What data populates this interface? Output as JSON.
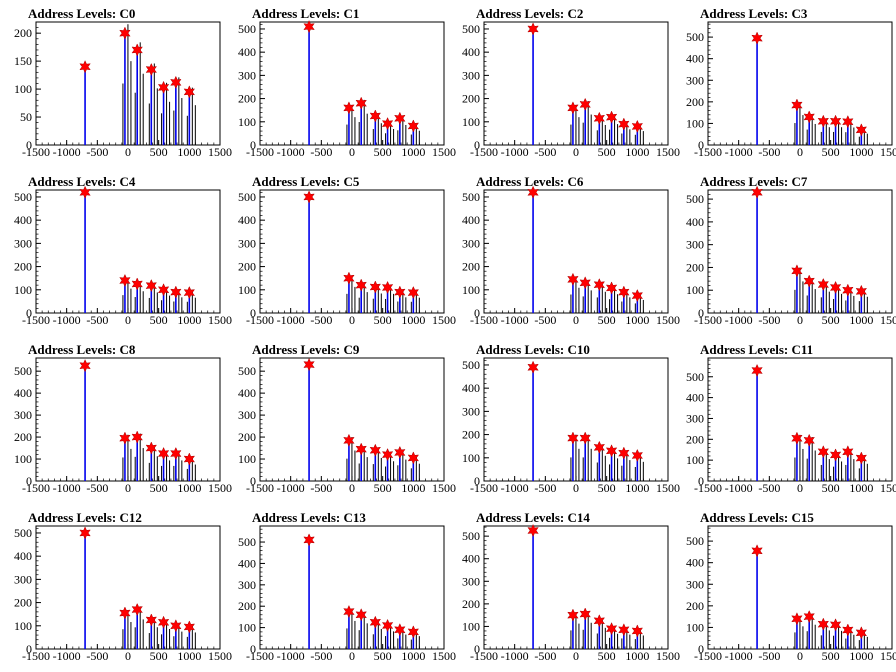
{
  "chart_data": [
    {
      "type": "bar",
      "title": "Address Levels: C0",
      "xlim": [
        -1500,
        1500
      ],
      "ylim": [
        0,
        220
      ],
      "yticks": [
        0,
        50,
        100,
        150,
        200
      ],
      "xticks": [
        -1500,
        -1000,
        -500,
        0,
        500,
        1000,
        1500
      ],
      "peaks": [
        {
          "x": -700,
          "y": 140
        },
        {
          "x": -50,
          "y": 200
        },
        {
          "x": 150,
          "y": 170
        },
        {
          "x": 380,
          "y": 135
        },
        {
          "x": 580,
          "y": 103
        },
        {
          "x": 780,
          "y": 112
        },
        {
          "x": 1000,
          "y": 95
        }
      ]
    },
    {
      "type": "bar",
      "title": "Address Levels: C1",
      "xlim": [
        -1500,
        1500
      ],
      "ylim": [
        0,
        530
      ],
      "yticks": [
        0,
        100,
        200,
        300,
        400,
        500
      ],
      "xticks": [
        -1500,
        -1000,
        -500,
        0,
        500,
        1000,
        1500
      ],
      "peaks": [
        {
          "x": -700,
          "y": 510
        },
        {
          "x": -50,
          "y": 160
        },
        {
          "x": 150,
          "y": 180
        },
        {
          "x": 380,
          "y": 125
        },
        {
          "x": 580,
          "y": 92
        },
        {
          "x": 780,
          "y": 115
        },
        {
          "x": 1000,
          "y": 82
        }
      ]
    },
    {
      "type": "bar",
      "title": "Address Levels: C2",
      "xlim": [
        -1500,
        1500
      ],
      "ylim": [
        0,
        530
      ],
      "yticks": [
        0,
        100,
        200,
        300,
        400,
        500
      ],
      "xticks": [
        -1500,
        -1000,
        -500,
        0,
        500,
        1000,
        1500
      ],
      "peaks": [
        {
          "x": -700,
          "y": 500
        },
        {
          "x": -50,
          "y": 160
        },
        {
          "x": 150,
          "y": 175
        },
        {
          "x": 380,
          "y": 115
        },
        {
          "x": 580,
          "y": 120
        },
        {
          "x": 780,
          "y": 90
        },
        {
          "x": 1000,
          "y": 80
        }
      ]
    },
    {
      "type": "bar",
      "title": "Address Levels: C3",
      "xlim": [
        -1500,
        1500
      ],
      "ylim": [
        0,
        570
      ],
      "yticks": [
        0,
        100,
        200,
        300,
        400,
        500
      ],
      "xticks": [
        -1500,
        -1000,
        -500,
        0,
        500,
        1000,
        1500
      ],
      "peaks": [
        {
          "x": -700,
          "y": 495
        },
        {
          "x": -50,
          "y": 185
        },
        {
          "x": 150,
          "y": 130
        },
        {
          "x": 380,
          "y": 110
        },
        {
          "x": 580,
          "y": 110
        },
        {
          "x": 780,
          "y": 108
        },
        {
          "x": 1000,
          "y": 70
        }
      ]
    },
    {
      "type": "bar",
      "title": "Address Levels: C4",
      "xlim": [
        -1500,
        1500
      ],
      "ylim": [
        0,
        530
      ],
      "yticks": [
        0,
        100,
        200,
        300,
        400,
        500
      ],
      "xticks": [
        -1500,
        -1000,
        -500,
        0,
        500,
        1000,
        1500
      ],
      "peaks": [
        {
          "x": -700,
          "y": 520
        },
        {
          "x": -50,
          "y": 140
        },
        {
          "x": 150,
          "y": 125
        },
        {
          "x": 380,
          "y": 118
        },
        {
          "x": 580,
          "y": 100
        },
        {
          "x": 780,
          "y": 90
        },
        {
          "x": 1000,
          "y": 88
        }
      ]
    },
    {
      "type": "bar",
      "title": "Address Levels: C5",
      "xlim": [
        -1500,
        1500
      ],
      "ylim": [
        0,
        530
      ],
      "yticks": [
        0,
        100,
        200,
        300,
        400,
        500
      ],
      "xticks": [
        -1500,
        -1000,
        -500,
        0,
        500,
        1000,
        1500
      ],
      "peaks": [
        {
          "x": -700,
          "y": 500
        },
        {
          "x": -50,
          "y": 150
        },
        {
          "x": 150,
          "y": 120
        },
        {
          "x": 380,
          "y": 112
        },
        {
          "x": 580,
          "y": 110
        },
        {
          "x": 780,
          "y": 90
        },
        {
          "x": 1000,
          "y": 88
        }
      ]
    },
    {
      "type": "bar",
      "title": "Address Levels: C6",
      "xlim": [
        -1500,
        1500
      ],
      "ylim": [
        0,
        530
      ],
      "yticks": [
        0,
        100,
        200,
        300,
        400,
        500
      ],
      "xticks": [
        -1500,
        -1000,
        -500,
        0,
        500,
        1000,
        1500
      ],
      "peaks": [
        {
          "x": -700,
          "y": 520
        },
        {
          "x": -50,
          "y": 145
        },
        {
          "x": 150,
          "y": 130
        },
        {
          "x": 380,
          "y": 122
        },
        {
          "x": 580,
          "y": 108
        },
        {
          "x": 780,
          "y": 90
        },
        {
          "x": 1000,
          "y": 75
        }
      ]
    },
    {
      "type": "bar",
      "title": "Address Levels: C7",
      "xlim": [
        -1500,
        1500
      ],
      "ylim": [
        0,
        540
      ],
      "yticks": [
        0,
        100,
        200,
        300,
        400,
        500
      ],
      "xticks": [
        -1500,
        -1000,
        -500,
        0,
        500,
        1000,
        1500
      ],
      "peaks": [
        {
          "x": -700,
          "y": 530
        },
        {
          "x": -50,
          "y": 185
        },
        {
          "x": 150,
          "y": 140
        },
        {
          "x": 380,
          "y": 125
        },
        {
          "x": 580,
          "y": 112
        },
        {
          "x": 780,
          "y": 100
        },
        {
          "x": 1000,
          "y": 95
        }
      ]
    },
    {
      "type": "bar",
      "title": "Address Levels: C8",
      "xlim": [
        -1500,
        1500
      ],
      "ylim": [
        0,
        560
      ],
      "yticks": [
        0,
        100,
        200,
        300,
        400,
        500
      ],
      "xticks": [
        -1500,
        -1000,
        -500,
        0,
        500,
        1000,
        1500
      ],
      "peaks": [
        {
          "x": -700,
          "y": 525
        },
        {
          "x": -50,
          "y": 195
        },
        {
          "x": 150,
          "y": 200
        },
        {
          "x": 380,
          "y": 150
        },
        {
          "x": 580,
          "y": 125
        },
        {
          "x": 780,
          "y": 125
        },
        {
          "x": 1000,
          "y": 100
        }
      ]
    },
    {
      "type": "bar",
      "title": "Address Levels: C9",
      "xlim": [
        -1500,
        1500
      ],
      "ylim": [
        0,
        560
      ],
      "yticks": [
        0,
        100,
        200,
        300,
        400,
        500
      ],
      "xticks": [
        -1500,
        -1000,
        -500,
        0,
        500,
        1000,
        1500
      ],
      "peaks": [
        {
          "x": -700,
          "y": 530
        },
        {
          "x": -50,
          "y": 185
        },
        {
          "x": 150,
          "y": 145
        },
        {
          "x": 380,
          "y": 140
        },
        {
          "x": 580,
          "y": 120
        },
        {
          "x": 780,
          "y": 130
        },
        {
          "x": 1000,
          "y": 105
        }
      ]
    },
    {
      "type": "bar",
      "title": "Address Levels: C10",
      "xlim": [
        -1500,
        1500
      ],
      "ylim": [
        0,
        530
      ],
      "yticks": [
        0,
        100,
        200,
        300,
        400,
        500
      ],
      "xticks": [
        -1500,
        -1000,
        -500,
        0,
        500,
        1000,
        1500
      ],
      "peaks": [
        {
          "x": -700,
          "y": 490
        },
        {
          "x": -50,
          "y": 185
        },
        {
          "x": 150,
          "y": 185
        },
        {
          "x": 380,
          "y": 145
        },
        {
          "x": 580,
          "y": 130
        },
        {
          "x": 780,
          "y": 120
        },
        {
          "x": 1000,
          "y": 110
        }
      ]
    },
    {
      "type": "bar",
      "title": "Address Levels: C11",
      "xlim": [
        -1500,
        1500
      ],
      "ylim": [
        0,
        590
      ],
      "yticks": [
        0,
        100,
        200,
        300,
        400,
        500
      ],
      "xticks": [
        -1500,
        -1000,
        -500,
        0,
        500,
        1000,
        1500
      ],
      "peaks": [
        {
          "x": -700,
          "y": 530
        },
        {
          "x": -50,
          "y": 205
        },
        {
          "x": 150,
          "y": 195
        },
        {
          "x": 380,
          "y": 140
        },
        {
          "x": 580,
          "y": 125
        },
        {
          "x": 780,
          "y": 140
        },
        {
          "x": 1000,
          "y": 110
        }
      ]
    },
    {
      "type": "bar",
      "title": "Address Levels: C12",
      "xlim": [
        -1500,
        1500
      ],
      "ylim": [
        0,
        530
      ],
      "yticks": [
        0,
        100,
        200,
        300,
        400,
        500
      ],
      "xticks": [
        -1500,
        -1000,
        -500,
        0,
        500,
        1000,
        1500
      ],
      "peaks": [
        {
          "x": -700,
          "y": 500
        },
        {
          "x": -50,
          "y": 155
        },
        {
          "x": 150,
          "y": 170
        },
        {
          "x": 380,
          "y": 125
        },
        {
          "x": 580,
          "y": 115
        },
        {
          "x": 780,
          "y": 100
        },
        {
          "x": 1000,
          "y": 95
        }
      ]
    },
    {
      "type": "bar",
      "title": "Address Levels: C13",
      "xlim": [
        -1500,
        1500
      ],
      "ylim": [
        0,
        575
      ],
      "yticks": [
        0,
        100,
        200,
        300,
        400,
        500
      ],
      "xticks": [
        -1500,
        -1000,
        -500,
        0,
        500,
        1000,
        1500
      ],
      "peaks": [
        {
          "x": -700,
          "y": 510
        },
        {
          "x": -50,
          "y": 175
        },
        {
          "x": 150,
          "y": 160
        },
        {
          "x": 380,
          "y": 125
        },
        {
          "x": 580,
          "y": 110
        },
        {
          "x": 780,
          "y": 90
        },
        {
          "x": 1000,
          "y": 80
        }
      ]
    },
    {
      "type": "bar",
      "title": "Address Levels: C14",
      "xlim": [
        -1500,
        1500
      ],
      "ylim": [
        0,
        545
      ],
      "yticks": [
        0,
        100,
        200,
        300,
        400,
        500
      ],
      "xticks": [
        -1500,
        -1000,
        -500,
        0,
        500,
        1000,
        1500
      ],
      "peaks": [
        {
          "x": -700,
          "y": 525
        },
        {
          "x": -50,
          "y": 150
        },
        {
          "x": 150,
          "y": 155
        },
        {
          "x": 380,
          "y": 125
        },
        {
          "x": 580,
          "y": 90
        },
        {
          "x": 780,
          "y": 85
        },
        {
          "x": 1000,
          "y": 80
        }
      ]
    },
    {
      "type": "bar",
      "title": "Address Levels: C15",
      "xlim": [
        -1500,
        1500
      ],
      "ylim": [
        0,
        570
      ],
      "yticks": [
        0,
        100,
        200,
        300,
        400,
        500
      ],
      "xticks": [
        -1500,
        -1000,
        -500,
        0,
        500,
        1000,
        1500
      ],
      "peaks": [
        {
          "x": -700,
          "y": 455
        },
        {
          "x": -50,
          "y": 140
        },
        {
          "x": 150,
          "y": 150
        },
        {
          "x": 380,
          "y": 115
        },
        {
          "x": 580,
          "y": 112
        },
        {
          "x": 780,
          "y": 88
        },
        {
          "x": 1000,
          "y": 75
        }
      ]
    }
  ]
}
